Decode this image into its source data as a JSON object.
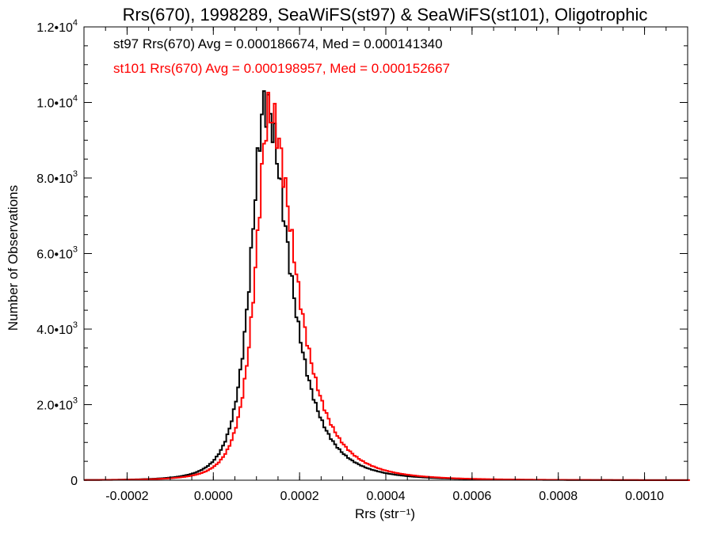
{
  "chart_data": {
    "type": "histogram",
    "title": "Rrs(670), 1998289, SeaWiFS(st97) & SeaWiFS(st101), Oligotrophic",
    "xlabel": "Rrs (str⁻¹)",
    "ylabel": "Number of Observations",
    "xlim": [
      -0.0003,
      0.0011
    ],
    "ylim": [
      0,
      12000
    ],
    "x_ticks": [
      {
        "value": -0.0002,
        "label": "-0.0002"
      },
      {
        "value": 0.0,
        "label": "0.0000"
      },
      {
        "value": 0.0002,
        "label": "0.0002"
      },
      {
        "value": 0.0004,
        "label": "0.0004"
      },
      {
        "value": 0.0006,
        "label": "0.0006"
      },
      {
        "value": 0.0008,
        "label": "0.0008"
      },
      {
        "value": 0.001,
        "label": "0.0010"
      }
    ],
    "y_ticks": [
      {
        "value": 0,
        "mant": "0",
        "exp": ""
      },
      {
        "value": 2000,
        "mant": "2.0•10",
        "exp": "3"
      },
      {
        "value": 4000,
        "mant": "4.0•10",
        "exp": "3"
      },
      {
        "value": 6000,
        "mant": "6.0•10",
        "exp": "3"
      },
      {
        "value": 8000,
        "mant": "8.0•10",
        "exp": "3"
      },
      {
        "value": 10000,
        "mant": "1.0•10",
        "exp": "4"
      },
      {
        "value": 12000,
        "mant": "1.2•10",
        "exp": "4"
      }
    ],
    "grid": false,
    "legend_placement": "top-left",
    "series": [
      {
        "name": "st97",
        "color": "#000000",
        "label": "st97 Rrs(670) Avg = 0.000186674, Med = 0.000141340",
        "peak_x": 0.00012,
        "peak_y": 9950,
        "left_width": 5.2e-05,
        "right_width": 8.8e-05
      },
      {
        "name": "st101",
        "color": "#ff0000",
        "label": "st101 Rrs(670) Avg = 0.000198957, Med = 0.000152667",
        "peak_x": 0.00013,
        "peak_y": 9750,
        "left_width": 5e-05,
        "right_width": 9.4e-05
      }
    ]
  }
}
